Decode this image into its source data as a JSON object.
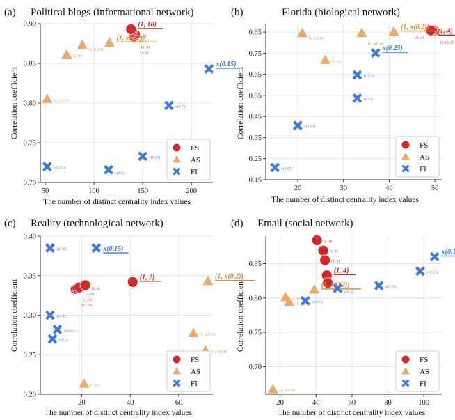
{
  "colors": {
    "FS": "#d62728",
    "AS": "#f0a868",
    "FI": "#3b7ae6",
    "AS_text": "#d98a36",
    "grid": "#e4e4e4"
  },
  "chart_data": [
    {
      "type": "scatter",
      "panel_label": "(a)",
      "title": "Political blogs (informational network)",
      "xlabel": "The number of distinct centrality index values",
      "ylabel": "Correlation coefficient",
      "xlim": [
        45,
        222
      ],
      "ylim": [
        0.7,
        0.9
      ],
      "xticks": [
        50,
        100,
        150,
        200
      ],
      "xtick_labels": [
        "50",
        "100",
        "150",
        "200"
      ],
      "yticks": [
        0.7,
        0.75,
        0.8,
        0.85,
        0.9
      ],
      "ytick_labels": [
        "0.70",
        "0.75",
        "0.80",
        "0.85",
        "0.90"
      ],
      "legend": {
        "position": "bottom-right",
        "entries": [
          "FS",
          "AS",
          "FI"
        ]
      },
      "series": [
        {
          "name": "FS",
          "points": [
            [
              141,
              0.884
            ],
            [
              142,
              0.887
            ],
            [
              140,
              0.889
            ],
            [
              139,
              0.891
            ],
            [
              138,
              0.893
            ]
          ],
          "labels": [
            "(1, 6)",
            "(1, 4)",
            "(1, 2)",
            "(1, 8)",
            "(1, 10)"
          ],
          "highlight": "(1, 10)"
        },
        {
          "name": "AS",
          "points": [
            [
              52,
              0.805
            ],
            [
              72,
              0.861
            ],
            [
              88,
              0.873
            ],
            [
              116,
              0.876
            ]
          ],
          "labels": [
            "(1, x(0.4))",
            "(1, m)",
            "(1, x(0.8))",
            "(1, x(0.2))"
          ],
          "highlight": "(1, x(0.2))"
        },
        {
          "name": "FI",
          "points": [
            [
              52,
              0.72
            ],
            [
              115,
              0.716
            ],
            [
              150,
              0.733
            ],
            [
              177,
              0.797
            ],
            [
              218,
              0.843
            ]
          ],
          "labels": [
            "x(0.05)",
            "x(0.5)",
            "x(0.25)",
            "x(0.75)",
            "x(0.15)"
          ],
          "highlight": "x(0.15)"
        }
      ]
    },
    {
      "type": "scatter",
      "panel_label": "(b)",
      "title": "Florida (biological network)",
      "xlabel": "The number of distinct centrality index values",
      "ylabel": "Correlation coefficient",
      "xlim": [
        13,
        51.5
      ],
      "ylim": [
        0.15,
        0.89
      ],
      "xticks": [
        20,
        30,
        40,
        50
      ],
      "xtick_labels": [
        "20",
        "30",
        "40",
        "50"
      ],
      "yticks": [
        0.15,
        0.25,
        0.35,
        0.45,
        0.55,
        0.65,
        0.75,
        0.85
      ],
      "ytick_labels": [
        "0.15",
        "0.25",
        "0.35",
        "0.45",
        "0.55",
        "0.65",
        "0.75",
        "0.85"
      ],
      "legend": {
        "position": "bottom-right",
        "entries": [
          "FS",
          "AS",
          "FI"
        ]
      },
      "series": [
        {
          "name": "FS",
          "points": [
            [
              49.8,
              0.857
            ],
            [
              49.4,
              0.859
            ],
            [
              49.1,
              0.858
            ]
          ],
          "labels": [
            "(1, 8), (1, 10)",
            "(1, 6)",
            "(1, 4)"
          ],
          "extra_labels": [
            "(1, 2)"
          ],
          "highlight": "(1, 4)"
        },
        {
          "name": "AS",
          "points": [
            [
              21,
              0.845
            ],
            [
              26,
              0.717
            ],
            [
              34,
              0.845
            ],
            [
              41,
              0.852
            ]
          ],
          "labels": [
            "(1, x(0.8))",
            "(1, m)",
            "(1, x(0.4))",
            "(1, x(0.2))"
          ],
          "highlight": "(1, x(0.2))"
        },
        {
          "name": "FI",
          "points": [
            [
              15,
              0.208
            ],
            [
              20,
              0.407
            ],
            [
              33,
              0.537
            ],
            [
              33,
              0.647
            ],
            [
              37,
              0.751
            ]
          ],
          "labels": [
            "x(0.05)",
            "x(0.05)",
            "x(0.5)",
            "x(0.75)",
            "x(0.25)"
          ],
          "highlight": "x(0.25)"
        }
      ]
    },
    {
      "type": "scatter",
      "panel_label": "(c)",
      "title": "Reality (technological network)",
      "xlabel": "The number of distinct centrality index values",
      "ylabel": "Correlation coefficient",
      "xlim": [
        3,
        74
      ],
      "ylim": [
        0.2,
        0.4
      ],
      "xticks": [
        20,
        40,
        60
      ],
      "xtick_labels": [
        "20",
        "40",
        "60"
      ],
      "yticks": [
        0.2,
        0.25,
        0.3,
        0.35,
        0.4
      ],
      "ytick_labels": [
        "0.20",
        "0.25",
        "0.30",
        "0.35",
        "0.40"
      ],
      "legend": {
        "position": "bottom-right",
        "entries": [
          "FS",
          "AS",
          "FI"
        ]
      },
      "series": [
        {
          "name": "FS",
          "points": [
            [
              17.5,
              0.333
            ],
            [
              18.2,
              0.334
            ],
            [
              19,
              0.335
            ],
            [
              21.5,
              0.338
            ],
            [
              41,
              0.342
            ]
          ],
          "labels": [
            "(1, 10)",
            "(1, 8)",
            "(1, 6)",
            "(1, 4)",
            "(1, 2)"
          ],
          "highlight": "(1, 2)"
        },
        {
          "name": "AS",
          "points": [
            [
              21,
              0.213
            ],
            [
              66,
              0.277
            ],
            [
              71,
              0.255
            ],
            [
              72,
              0.343
            ]
          ],
          "labels": [
            "(1, m)",
            "(1, x(0.8))",
            "(1, x(0.4))",
            "(1, x(0.2))"
          ],
          "highlight": "(1, x(0.2))"
        },
        {
          "name": "FI",
          "points": [
            [
              7,
              0.385
            ],
            [
              7,
              0.3
            ],
            [
              8,
              0.27
            ],
            [
              10,
              0.282
            ],
            [
              26,
              0.385
            ]
          ],
          "labels": [
            "x(0.05)",
            "x(0.05)",
            "x(0.5)",
            "x(0.25)",
            "x(0.15)"
          ],
          "highlight": "x(0.15)"
        }
      ]
    },
    {
      "type": "scatter",
      "panel_label": "(d)",
      "title": "Email (social network)",
      "xlabel": "The number of distinct centrality index values",
      "ylabel": "Correlation coefficient",
      "xlim": [
        12,
        110
      ],
      "ylim": [
        0.66,
        0.89
      ],
      "xticks": [
        20,
        40,
        60,
        80,
        100
      ],
      "xtick_labels": [
        "20",
        "40",
        "60",
        "80",
        "100"
      ],
      "yticks": [
        0.7,
        0.75,
        0.8,
        0.85
      ],
      "ytick_labels": [
        "0.70",
        "0.75",
        "0.80",
        "0.85"
      ],
      "legend": {
        "position": "bottom-right",
        "entries": [
          "FS",
          "AS",
          "FI"
        ]
      },
      "series": [
        {
          "name": "FS",
          "points": [
            [
              40.5,
              0.884
            ],
            [
              44,
              0.869
            ],
            [
              45,
              0.855
            ],
            [
              46,
              0.833
            ],
            [
              46.5,
              0.822
            ]
          ],
          "labels": [
            "(1, 10)",
            "(1, 8)",
            "(1, 6)",
            "(1, 4)",
            "(1, 2)"
          ],
          "highlight": "(1, 4)"
        },
        {
          "name": "AS",
          "points": [
            [
              16,
              0.667
            ],
            [
              23,
              0.801
            ],
            [
              25,
              0.794
            ],
            [
              39,
              0.812
            ]
          ],
          "labels": [
            "(1, x(0.8))",
            "(1, m)",
            "(1, x(0.4))",
            "(1, x(0.2))"
          ],
          "highlight": "(1, x(0.2))"
        },
        {
          "name": "FI",
          "points": [
            [
              34,
              0.796
            ],
            [
              52,
              0.814
            ],
            [
              75,
              0.818
            ],
            [
              98,
              0.839
            ],
            [
              106,
              0.86
            ]
          ],
          "labels": [
            "x(0.05)",
            "x(0.5)",
            "x(0.75)",
            "x(0.25)",
            "x(0.15)"
          ],
          "highlight": "x(0.15)"
        }
      ]
    }
  ]
}
